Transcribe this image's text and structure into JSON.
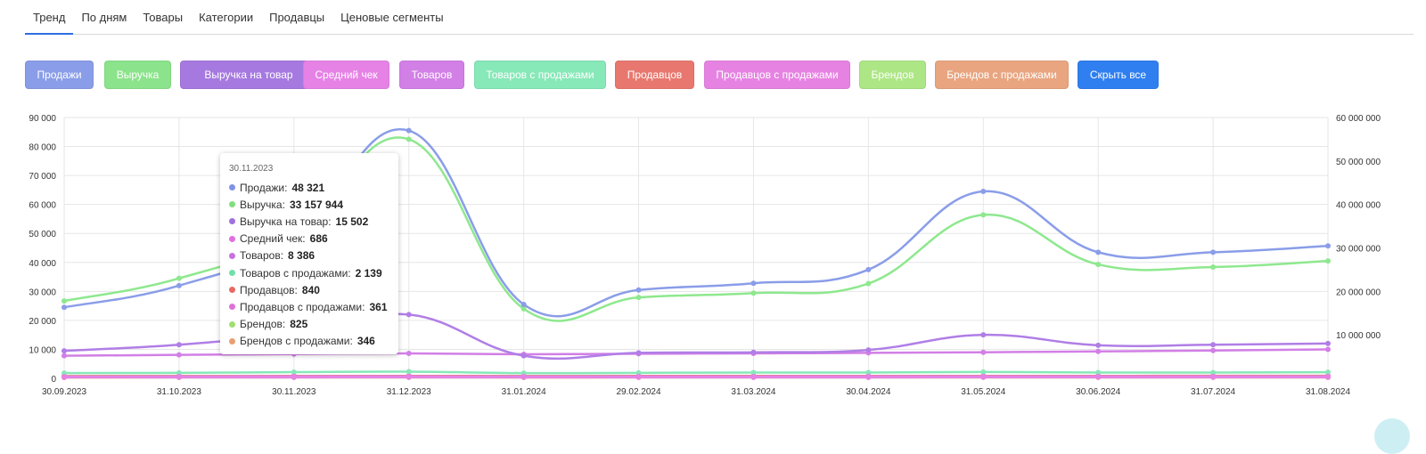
{
  "tabs": [
    "Тренд",
    "По дням",
    "Товары",
    "Категории",
    "Продавцы",
    "Ценовые сегменты"
  ],
  "series_buttons": [
    {
      "label": "Продажи",
      "color": "#8a9de8"
    },
    {
      "label": "Выручка",
      "color": "#8be38b"
    },
    {
      "label": "Выручка на товар",
      "color": "#a679e0"
    },
    {
      "label": "Средний чек",
      "color": "#e682e6"
    },
    {
      "label": "Товаров",
      "color": "#d27fe6"
    },
    {
      "label": "Товаров с продажами",
      "color": "#87e8b8"
    },
    {
      "label": "Продавцов",
      "color": "#e8786f"
    },
    {
      "label": "Продавцов с продажами",
      "color": "#e683e2"
    },
    {
      "label": "Брендов",
      "color": "#ade685"
    },
    {
      "label": "Брендов с продажами",
      "color": "#e8a580"
    },
    {
      "label": "Скрыть все",
      "color": "#2f7ff0"
    }
  ],
  "tooltip": {
    "date": "30.11.2023",
    "rows": [
      {
        "label": "Продажи:",
        "value": "48 321",
        "color": "#7f93e6"
      },
      {
        "label": "Выручка:",
        "value": "33 157 944",
        "color": "#7fe07f"
      },
      {
        "label": "Выручка на товар:",
        "value": "15 502",
        "color": "#a070e0"
      },
      {
        "label": "Средний чек:",
        "value": "686",
        "color": "#e070e0"
      },
      {
        "label": "Товаров:",
        "value": "8 386",
        "color": "#c870e0"
      },
      {
        "label": "Товаров с продажами:",
        "value": "2 139",
        "color": "#70e0a8"
      },
      {
        "label": "Продавцов:",
        "value": "840",
        "color": "#e86a62"
      },
      {
        "label": "Продавцов с продажами:",
        "value": "361",
        "color": "#e070d8"
      },
      {
        "label": "Брендов:",
        "value": "825",
        "color": "#a0e070"
      },
      {
        "label": "Брендов с продажами:",
        "value": "346",
        "color": "#e8a070"
      }
    ]
  },
  "chart_data": {
    "type": "line",
    "x": [
      "30.09.2023",
      "31.10.2023",
      "30.11.2023",
      "31.12.2023",
      "31.01.2024",
      "29.02.2024",
      "31.03.2024",
      "30.04.2024",
      "31.05.2024",
      "30.06.2024",
      "31.07.2024",
      "31.08.2024"
    ],
    "ylim_left": [
      0,
      90000
    ],
    "yticks_left": [
      "0",
      "10 000",
      "20 000",
      "30 000",
      "40 000",
      "50 000",
      "60 000",
      "70 000",
      "80 000",
      "90 000"
    ],
    "ylim_right": [
      0,
      60000000
    ],
    "yticks_right": [
      "10 000 000",
      "20 000 000",
      "30 000 000",
      "40 000 000",
      "50 000 000",
      "60 000 000"
    ],
    "grid": true,
    "series": [
      {
        "name": "Продажи",
        "axis": "left",
        "color": "#8a9de8",
        "values": [
          24500,
          32000,
          48321,
          85500,
          25500,
          30500,
          32800,
          37500,
          64500,
          43500,
          43500,
          45700
        ]
      },
      {
        "name": "Выручка",
        "axis": "right",
        "color": "#8ee88e",
        "values": [
          17800000,
          23000000,
          33157944,
          55000000,
          16000000,
          18600000,
          19600000,
          21800000,
          37600000,
          26200000,
          25600000,
          27000000
        ]
      },
      {
        "name": "Выручка на товар",
        "axis": "left",
        "color": "#b07ee6",
        "values": [
          9500,
          11600,
          15502,
          22000,
          7800,
          8800,
          9000,
          9800,
          15000,
          11400,
          11600,
          12000
        ]
      },
      {
        "name": "Средний чек",
        "axis": "left",
        "color": "#e682e6",
        "values": [
          600,
          650,
          686,
          680,
          650,
          660,
          670,
          680,
          690,
          690,
          690,
          700
        ]
      },
      {
        "name": "Товаров",
        "axis": "left",
        "color": "#d27fe6",
        "values": [
          7800,
          8100,
          8386,
          8600,
          8300,
          8500,
          8600,
          8800,
          9000,
          9300,
          9600,
          10000
        ]
      },
      {
        "name": "Товаров с продажами",
        "axis": "left",
        "color": "#87e8b8",
        "values": [
          1800,
          1900,
          2139,
          2300,
          1800,
          1900,
          2000,
          2000,
          2200,
          2000,
          2000,
          2100
        ]
      },
      {
        "name": "Продавцов",
        "axis": "left",
        "color": "#e8786f",
        "values": [
          780,
          800,
          840,
          860,
          820,
          830,
          840,
          850,
          860,
          860,
          870,
          880
        ]
      },
      {
        "name": "Продавцов с продажами",
        "axis": "left",
        "color": "#e683e2",
        "values": [
          330,
          345,
          361,
          370,
          340,
          350,
          355,
          360,
          370,
          365,
          365,
          370
        ]
      },
      {
        "name": "Брендов",
        "axis": "left",
        "color": "#ade685",
        "values": [
          760,
          790,
          825,
          840,
          800,
          810,
          820,
          830,
          840,
          840,
          850,
          860
        ]
      },
      {
        "name": "Брендов с продажами",
        "axis": "left",
        "color": "#e8a580",
        "values": [
          310,
          330,
          346,
          355,
          320,
          330,
          335,
          340,
          350,
          345,
          345,
          350
        ]
      }
    ]
  }
}
